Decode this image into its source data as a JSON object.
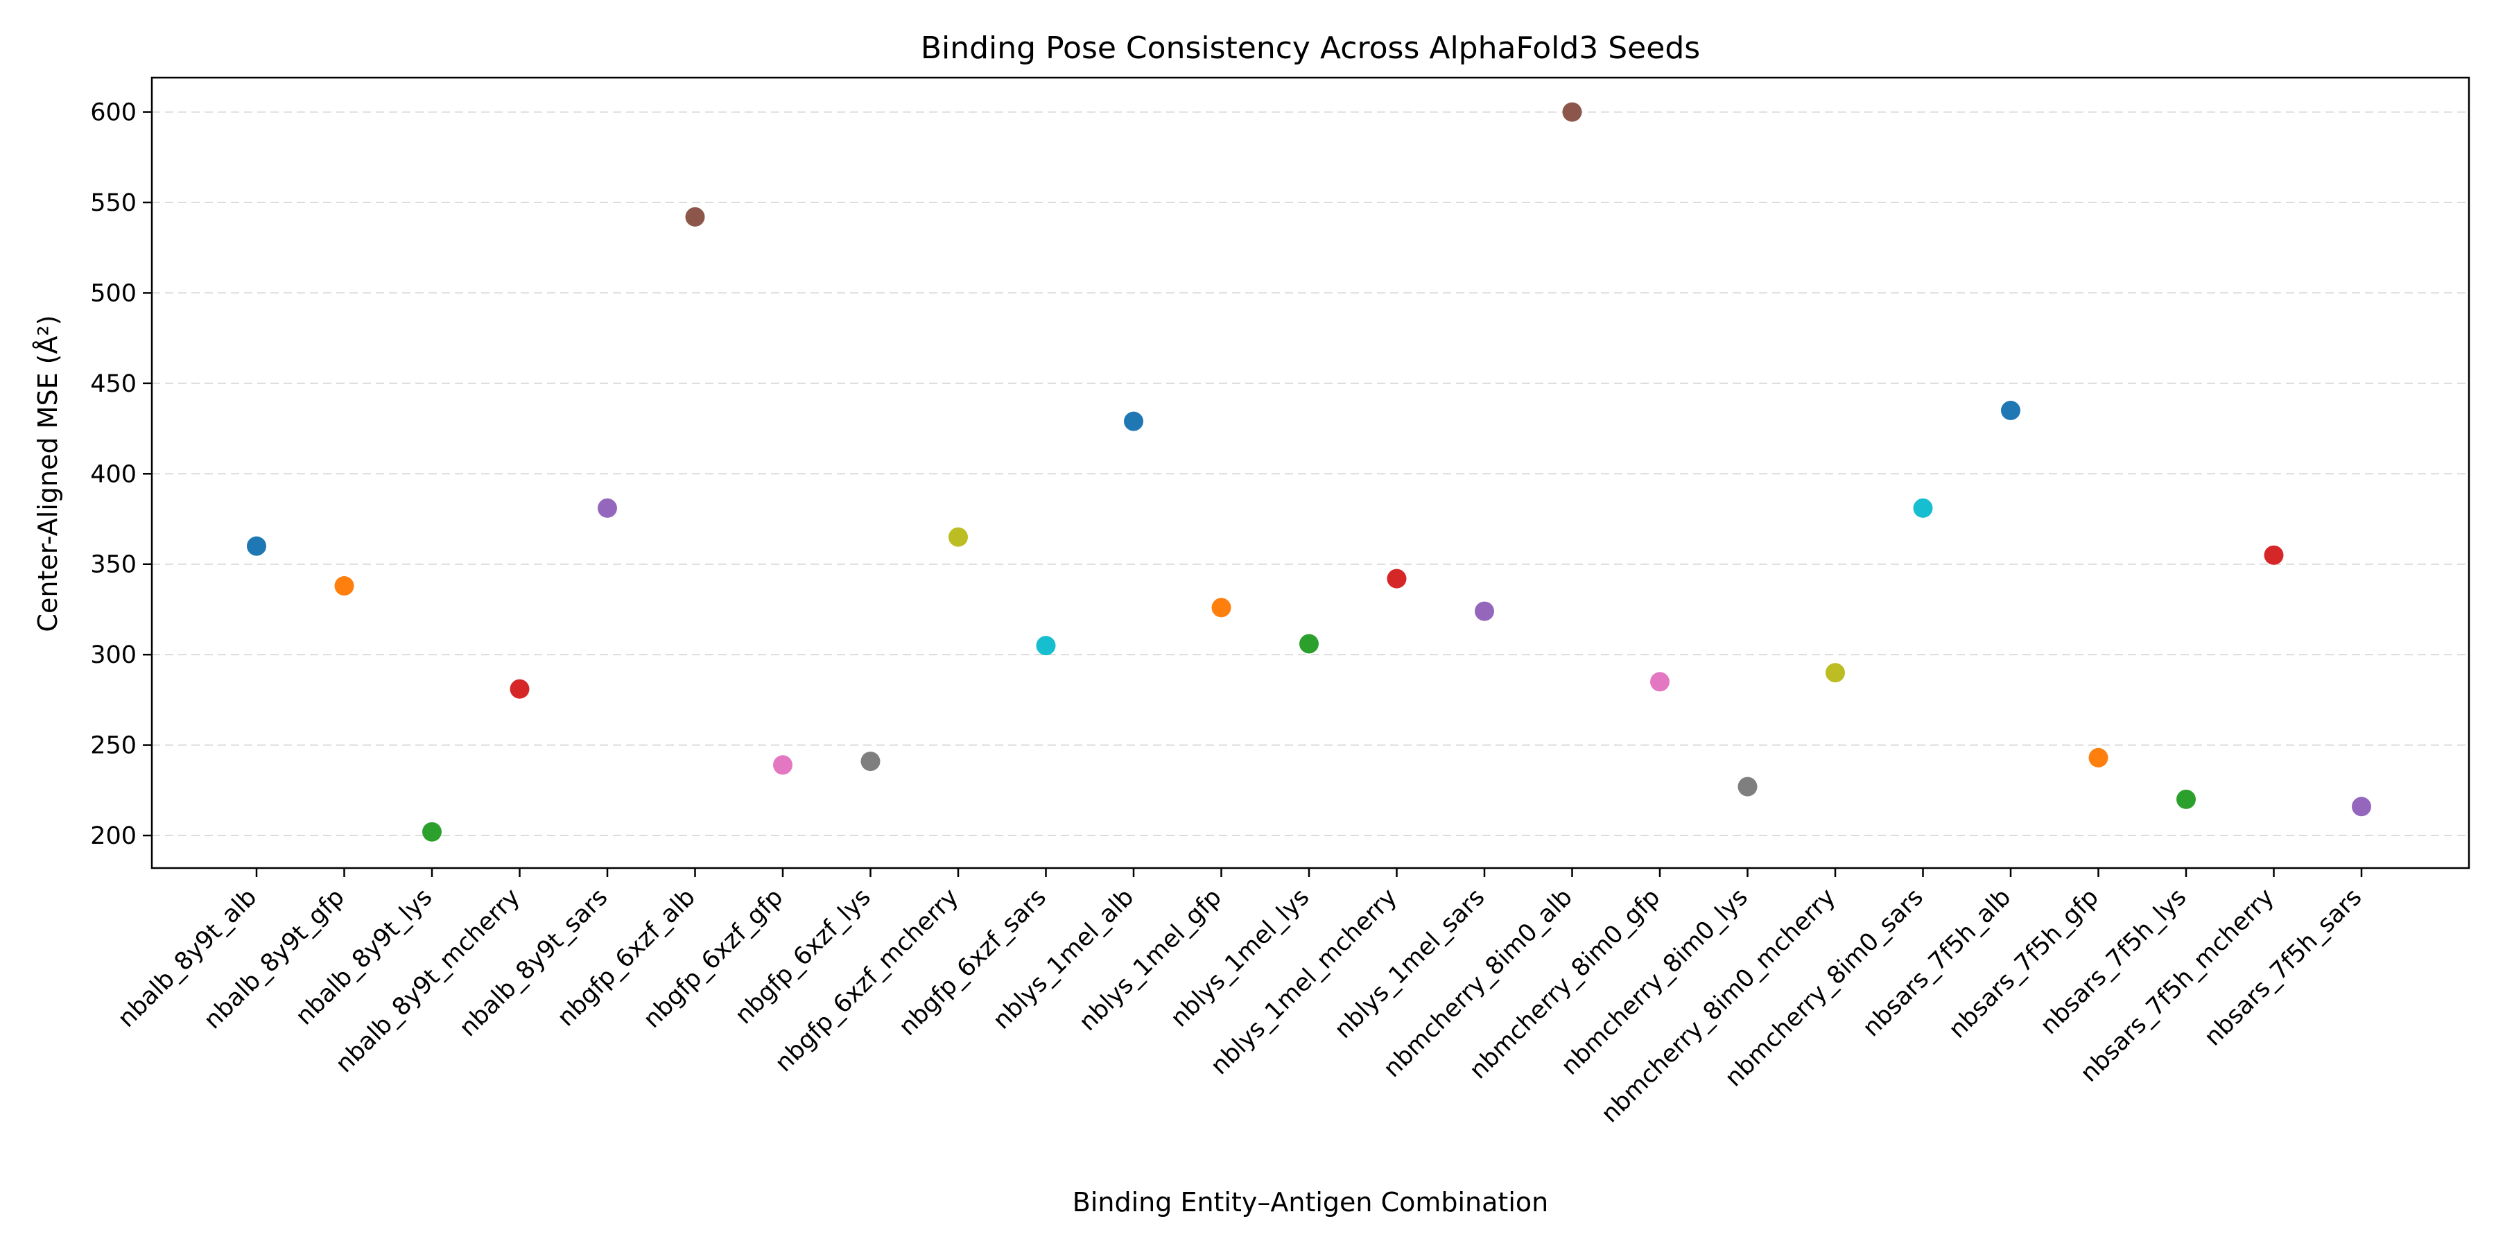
{
  "chart_data": {
    "type": "scatter",
    "title": "Binding Pose Consistency Across AlphaFold3 Seeds",
    "xlabel": "Binding Entity–Antigen Combination",
    "ylabel": "Center-Aligned MSE (Å²)",
    "ylim": [
      182,
      619
    ],
    "yticks": [
      200,
      250,
      300,
      350,
      400,
      450,
      500,
      550,
      600
    ],
    "grid": "y-dashed",
    "legend": "none",
    "categories": [
      "nbalb_8y9t_alb",
      "nbalb_8y9t_gfp",
      "nbalb_8y9t_lys",
      "nbalb_8y9t_mcherry",
      "nbalb_8y9t_sars",
      "nbgfp_6xzf_alb",
      "nbgfp_6xzf_gfp",
      "nbgfp_6xzf_lys",
      "nbgfp_6xzf_mcherry",
      "nbgfp_6xzf_sars",
      "nblys_1mel_alb",
      "nblys_1mel_gfp",
      "nblys_1mel_lys",
      "nblys_1mel_mcherry",
      "nblys_1mel_sars",
      "nbmcherry_8im0_alb",
      "nbmcherry_8im0_gfp",
      "nbmcherry_8im0_lys",
      "nbmcherry_8im0_mcherry",
      "nbmcherry_8im0_sars",
      "nbsars_7f5h_alb",
      "nbsars_7f5h_gfp",
      "nbsars_7f5h_lys",
      "nbsars_7f5h_mcherry",
      "nbsars_7f5h_sars"
    ],
    "values": [
      360,
      338,
      202,
      281,
      381,
      542,
      239,
      241,
      365,
      305,
      429,
      326,
      306,
      342,
      324,
      600,
      285,
      227,
      290,
      381,
      435,
      243,
      220,
      355,
      216
    ],
    "colors": [
      "#1f77b4",
      "#ff7f0e",
      "#2ca02c",
      "#d62728",
      "#9467bd",
      "#8c564b",
      "#e377c2",
      "#7f7f7f",
      "#bcbd22",
      "#17becf"
    ]
  }
}
